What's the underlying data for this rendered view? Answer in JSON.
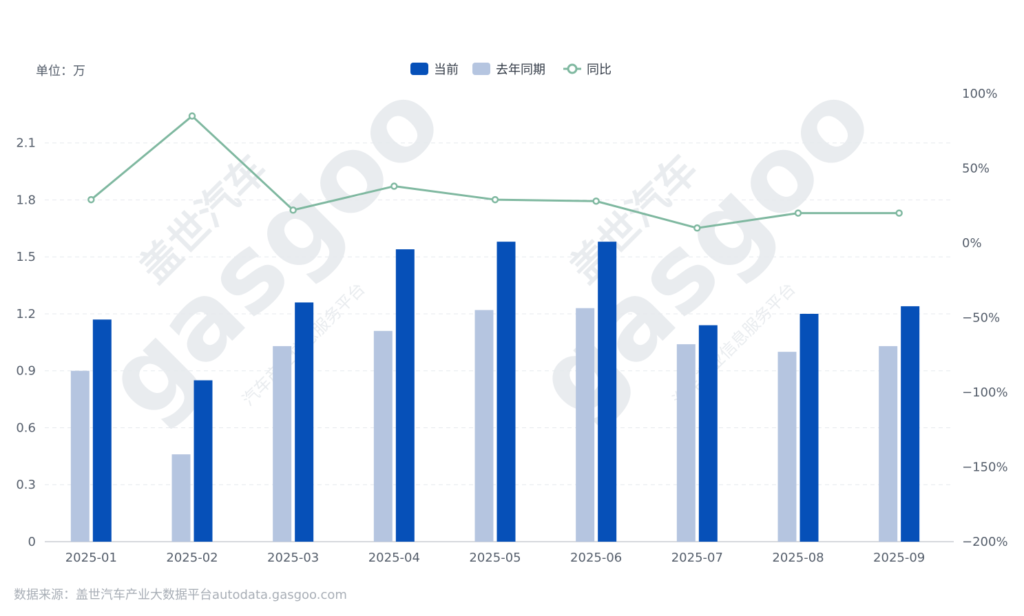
{
  "unit_label": "单位：万",
  "source_text": "数据来源：盖世汽车产业大数据平台autodata.gasgoo.com",
  "watermark": {
    "logo_text": "gasgoo",
    "cn_brand": "盖世汽车",
    "cn_tagline": "汽车产业信息服务平台"
  },
  "colors": {
    "current": "#0650b8",
    "last_year": "#b5c5e0",
    "yoy": "#7fb8a0",
    "grid": "#e6e9ed",
    "axis": "#c8ccd2"
  },
  "chart_data": {
    "type": "bar",
    "categories": [
      "2025-01",
      "2025-02",
      "2025-03",
      "2025-04",
      "2025-05",
      "2025-06",
      "2025-07",
      "2025-08",
      "2025-09"
    ],
    "series": [
      {
        "name": "当前",
        "type": "bar",
        "axis": "left",
        "values": [
          1.17,
          0.85,
          1.26,
          1.54,
          1.58,
          1.58,
          1.14,
          1.2,
          1.24
        ]
      },
      {
        "name": "去年同期",
        "type": "bar",
        "axis": "left",
        "values": [
          0.9,
          0.46,
          1.03,
          1.11,
          1.22,
          1.23,
          1.04,
          1.0,
          1.03
        ]
      },
      {
        "name": "同比",
        "type": "line",
        "axis": "right",
        "values": [
          29,
          85,
          22,
          38,
          29,
          28,
          10,
          20,
          20
        ]
      }
    ],
    "y_left": {
      "ticks": [
        "0",
        "0.3",
        "0.6",
        "0.9",
        "1.2",
        "1.5",
        "1.8",
        "2.1"
      ],
      "ylim": [
        0,
        2.36
      ]
    },
    "y_right": {
      "ticks": [
        "100%",
        "50%",
        "0%",
        "−50%",
        "−100%",
        "−150%",
        "−200%"
      ],
      "ylim": [
        -200,
        100
      ]
    },
    "grid": true,
    "legend_position": "top-center"
  }
}
